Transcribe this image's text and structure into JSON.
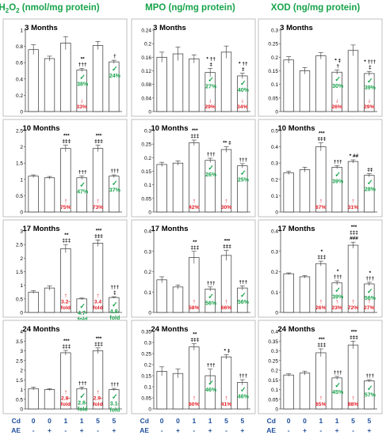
{
  "colors": {
    "green": "#17a34a",
    "red": "#e31b23",
    "blue": "#1f4e9c",
    "border": "#bfbfbf",
    "bar_stroke": "#333333"
  },
  "headers": [
    {
      "main": "H",
      "sub": "2",
      "mid": "O",
      "sub2": "2",
      "tail": " (nmol/mg protein)"
    },
    {
      "main": "MPO (ng/mg protein)"
    },
    {
      "main": "XOD (ng/mg protein)"
    }
  ],
  "axis_labels": {
    "cd_label": "Cd",
    "ae_label": "AE",
    "cd": [
      "0",
      "0",
      "1",
      "1",
      "5",
      "5"
    ],
    "ae": [
      "-",
      "+",
      "-",
      "+",
      "-",
      "+"
    ]
  },
  "chart_data": [
    {
      "type": "bar",
      "row_title": "3 Months",
      "column": "H2O2",
      "categories": [
        "1",
        "2",
        "3",
        "4",
        "5",
        "6"
      ],
      "values": [
        0.76,
        0.65,
        0.84,
        0.51,
        0.81,
        0.61
      ],
      "errors": [
        0.06,
        0.03,
        0.08,
        0.02,
        0.05,
        0.02
      ],
      "ylim": [
        0,
        1
      ],
      "yticks": [
        "0",
        "0.2",
        "0.4",
        "0.6",
        "0.8",
        "1"
      ],
      "sig": [
        [],
        [],
        [],
        [
          "**",
          "†††"
        ],
        [],
        [
          "†"
        ]
      ],
      "green": [
        [],
        [],
        [],
        [
          "✓",
          "38%"
        ],
        [],
        [
          "✓",
          "24%"
        ]
      ],
      "red": [
        [],
        [],
        [],
        [
          "↓",
          "33%"
        ],
        [],
        []
      ]
    },
    {
      "type": "bar",
      "row_title": "3 Months",
      "column": "MPO",
      "categories": [
        "1",
        "2",
        "3",
        "4",
        "5",
        "6"
      ],
      "values": [
        0.16,
        0.17,
        0.155,
        0.115,
        0.175,
        0.105
      ],
      "errors": [
        0.015,
        0.02,
        0.012,
        0.012,
        0.018,
        0.008
      ],
      "ylim": [
        0,
        0.24
      ],
      "yticks": [
        "0",
        "0.04",
        "0.08",
        "0.12",
        "0.16",
        "0.2",
        "0.24"
      ],
      "sig": [
        [],
        [],
        [],
        [
          "* ††",
          "‡"
        ],
        [],
        [
          "* ††",
          "‡"
        ]
      ],
      "green": [
        [],
        [],
        [],
        [
          "✓",
          "27%"
        ],
        [],
        [
          "✓",
          "40%"
        ]
      ],
      "red": [
        [],
        [],
        [],
        [
          "↓",
          "29%"
        ],
        [],
        [
          "↓",
          "34%"
        ]
      ]
    },
    {
      "type": "bar",
      "row_title": "3 Months",
      "column": "XOD",
      "categories": [
        "1",
        "2",
        "3",
        "4",
        "5",
        "6"
      ],
      "values": [
        0.19,
        0.15,
        0.205,
        0.145,
        0.225,
        0.14
      ],
      "errors": [
        0.012,
        0.012,
        0.012,
        0.008,
        0.02,
        0.008
      ],
      "ylim": [
        0,
        0.3
      ],
      "yticks": [
        "0",
        "0.05",
        "0.1",
        "0.15",
        "0.2",
        "0.25",
        "0.3"
      ],
      "sig": [
        [],
        [],
        [],
        [
          "* ‡",
          "†"
        ],
        [],
        [
          "* †††",
          "‡"
        ]
      ],
      "green": [
        [],
        [],
        [],
        [
          "✓",
          "30%"
        ],
        [],
        [
          "✓",
          "39%"
        ]
      ],
      "red": [
        [],
        [],
        [],
        [
          "↓",
          "26%"
        ],
        [],
        [
          "↓",
          "29%"
        ]
      ]
    },
    {
      "type": "bar",
      "row_title": "10 Months",
      "column": "H2O2",
      "categories": [
        "1",
        "2",
        "3",
        "4",
        "5",
        "6"
      ],
      "values": [
        1.1,
        1.05,
        1.95,
        1.05,
        1.95,
        1.1
      ],
      "errors": [
        0.04,
        0.04,
        0.1,
        0.05,
        0.1,
        0.04
      ],
      "ylim": [
        0,
        2.5
      ],
      "yticks": [
        "0",
        "0.5",
        "1",
        "1.5",
        "2",
        "2.5"
      ],
      "sig": [
        [],
        [],
        [
          "***",
          "‡‡‡"
        ],
        [
          "†††"
        ],
        [
          "***",
          "‡‡‡"
        ],
        [
          "†††"
        ]
      ],
      "green": [
        [],
        [],
        [],
        [
          "✓",
          "47%"
        ],
        [],
        [
          "✓",
          "37%"
        ]
      ],
      "red": [
        [],
        [],
        [
          "↑",
          "75%"
        ],
        [],
        [
          "↑",
          "73%"
        ],
        []
      ]
    },
    {
      "type": "bar",
      "row_title": "10 Months",
      "column": "MPO",
      "categories": [
        "1",
        "2",
        "3",
        "4",
        "5",
        "6"
      ],
      "values": [
        0.175,
        0.18,
        0.255,
        0.19,
        0.23,
        0.17
      ],
      "errors": [
        0.008,
        0.008,
        0.01,
        0.008,
        0.01,
        0.008
      ],
      "ylim": [
        0,
        0.3
      ],
      "yticks": [
        "0",
        "0.05",
        "0.1",
        "0.15",
        "0.2",
        "0.25",
        "0.3"
      ],
      "sig": [
        [],
        [],
        [
          "***",
          "‡‡‡"
        ],
        [
          "†††"
        ],
        [
          "** ‡"
        ],
        [
          "†††"
        ]
      ],
      "green": [
        [],
        [],
        [],
        [
          "✓",
          "26%"
        ],
        [],
        [
          "✓",
          "25%"
        ]
      ],
      "red": [
        [],
        [],
        [
          "↑",
          "42%"
        ],
        [],
        [
          "↑",
          "30%"
        ],
        []
      ]
    },
    {
      "type": "bar",
      "row_title": "10 Months",
      "column": "XOD",
      "categories": [
        "1",
        "2",
        "3",
        "4",
        "5",
        "6"
      ],
      "values": [
        0.24,
        0.26,
        0.4,
        0.275,
        0.31,
        0.225
      ],
      "errors": [
        0.01,
        0.015,
        0.025,
        0.01,
        0.01,
        0.01
      ],
      "ylim": [
        0,
        0.5
      ],
      "yticks": [
        "0",
        "0.1",
        "0.2",
        "0.3",
        "0.4",
        "0.5"
      ],
      "sig": [
        [],
        [],
        [
          "***",
          "‡‡‡"
        ],
        [
          "†††"
        ],
        [
          "* ##"
        ],
        [
          "‡‡"
        ]
      ],
      "green": [
        [],
        [],
        [],
        [
          "✓",
          "39%"
        ],
        [],
        [
          "✓",
          "28%"
        ]
      ],
      "red": [
        [],
        [],
        [
          "↑",
          "67%"
        ],
        [],
        [
          "↑",
          "31%"
        ],
        []
      ]
    },
    {
      "type": "bar",
      "row_title": "17 Months",
      "column": "H2O2",
      "categories": [
        "1",
        "2",
        "3",
        "4",
        "5",
        "6"
      ],
      "values": [
        0.75,
        0.9,
        2.35,
        0.5,
        2.55,
        0.55
      ],
      "errors": [
        0.05,
        0.08,
        0.15,
        0.03,
        0.12,
        0.03
      ],
      "ylim": [
        0,
        3
      ],
      "yticks": [
        "0",
        "0.5",
        "1",
        "1.5",
        "2",
        "2.5",
        "3"
      ],
      "sig": [
        [],
        [],
        [
          "**",
          "‡‡‡"
        ],
        [],
        [
          "***",
          "‡‡‡"
        ],
        [
          "†††",
          "‡"
        ]
      ],
      "green": [
        [],
        [],
        [],
        [
          "✓",
          "4.7-",
          "fold"
        ],
        [],
        [
          "✓",
          "4.8-",
          "fold"
        ]
      ],
      "red": [
        [],
        [],
        [
          "↑",
          "3.2-",
          "fold"
        ],
        [],
        [
          "↑",
          "3.4",
          "fold"
        ],
        []
      ]
    },
    {
      "type": "bar",
      "row_title": "17 Months",
      "column": "MPO",
      "categories": [
        "1",
        "2",
        "3",
        "4",
        "5",
        "6"
      ],
      "values": [
        0.16,
        0.125,
        0.27,
        0.115,
        0.28,
        0.12
      ],
      "errors": [
        0.015,
        0.01,
        0.03,
        0.01,
        0.025,
        0.01
      ],
      "ylim": [
        0,
        0.4
      ],
      "yticks": [
        "0",
        "0.1",
        "0.2",
        "0.3",
        "0.4"
      ],
      "sig": [
        [],
        [],
        [
          "**",
          "‡‡‡"
        ],
        [
          "†††"
        ],
        [
          "***",
          "‡‡‡"
        ],
        [
          "†††"
        ]
      ],
      "green": [
        [],
        [],
        [],
        [
          "✓",
          "56%"
        ],
        [],
        [
          "✓",
          "56%"
        ]
      ],
      "red": [
        [],
        [],
        [
          "↑",
          "58%"
        ],
        [],
        [
          "↑",
          "66%"
        ],
        []
      ]
    },
    {
      "type": "bar",
      "row_title": "17 Months",
      "column": "XOD",
      "categories": [
        "1",
        "2",
        "3",
        "4",
        "5",
        "6"
      ],
      "values": [
        0.19,
        0.175,
        0.24,
        0.145,
        0.33,
        0.14
      ],
      "errors": [
        0.004,
        0.006,
        0.012,
        0.01,
        0.015,
        0.008
      ],
      "ylim": [
        0,
        0.4
      ],
      "yticks": [
        "0",
        "0.1",
        "0.2",
        "0.3",
        "0.4"
      ],
      "sig": [
        [],
        [],
        [
          "*",
          "‡‡‡"
        ],
        [
          "*",
          "†††"
        ],
        [
          "***",
          "‡‡‡",
          "###"
        ],
        [
          "*",
          "†††"
        ]
      ],
      "green": [
        [],
        [],
        [],
        [
          "✓",
          "39%"
        ],
        [],
        [
          "✓",
          "56%"
        ]
      ],
      "red": [
        [],
        [],
        [
          "↑",
          "26%"
        ],
        [
          "↑",
          "23%"
        ],
        [
          "↑",
          "72%"
        ],
        [
          "↑",
          "27%"
        ]
      ]
    },
    {
      "type": "bar",
      "row_title": "24 Months",
      "column": "H2O2",
      "categories": [
        "1",
        "2",
        "3",
        "4",
        "5",
        "6"
      ],
      "values": [
        1.05,
        1.0,
        2.9,
        1.05,
        3.0,
        1.0
      ],
      "errors": [
        0.08,
        0.05,
        0.12,
        0.08,
        0.15,
        0.06
      ],
      "ylim": [
        0,
        4
      ],
      "yticks": [
        "0",
        "0.5",
        "1",
        "1.5",
        "2",
        "2.5",
        "3",
        "3.5",
        "4"
      ],
      "sig": [
        [],
        [],
        [
          "***",
          "‡‡‡"
        ],
        [
          "†††"
        ],
        [
          "***",
          "‡‡‡"
        ],
        [
          "†††"
        ]
      ],
      "green": [
        [],
        [],
        [],
        [
          "✓",
          "2.8-",
          "fold"
        ],
        [],
        [
          "✓",
          "3.1-",
          "fold"
        ]
      ],
      "red": [
        [],
        [],
        [
          "↑",
          "2.8-",
          "fold"
        ],
        [],
        [
          "↑",
          "2.9-",
          "fold"
        ],
        []
      ]
    },
    {
      "type": "bar",
      "row_title": "24 Months",
      "column": "MPO",
      "categories": [
        "1",
        "2",
        "3",
        "4",
        "5",
        "6"
      ],
      "values": [
        0.17,
        0.16,
        0.28,
        0.15,
        0.235,
        0.12
      ],
      "errors": [
        0.02,
        0.02,
        0.015,
        0.03,
        0.01,
        0.012
      ],
      "ylim": [
        0,
        0.35
      ],
      "yticks": [
        "0",
        "0.05",
        "0.1",
        "0.15",
        "0.2",
        "0.25",
        "0.3",
        "0.35"
      ],
      "sig": [
        [],
        [],
        [
          "**",
          "‡‡‡"
        ],
        [
          "†††"
        ],
        [
          "* ‡"
        ],
        [
          "†††"
        ]
      ],
      "green": [
        [],
        [],
        [],
        [
          "✓",
          "46%"
        ],
        [],
        [
          "✓",
          "46%"
        ]
      ],
      "red": [
        [],
        [],
        [
          "↑",
          "60%"
        ],
        [],
        [
          "↑",
          "41%"
        ],
        []
      ]
    },
    {
      "type": "bar",
      "row_title": "24 Months",
      "column": "XOD",
      "categories": [
        "1",
        "2",
        "3",
        "4",
        "5",
        "6"
      ],
      "values": [
        0.175,
        0.185,
        0.29,
        0.16,
        0.33,
        0.145
      ],
      "errors": [
        0.006,
        0.01,
        0.02,
        0.008,
        0.02,
        0.006
      ],
      "ylim": [
        0,
        0.4
      ],
      "yticks": [
        "0",
        "0.05",
        "0.1",
        "0.15",
        "0.2",
        "0.25",
        "0.3",
        "0.35",
        "0.4"
      ],
      "sig": [
        [],
        [],
        [
          "***",
          "‡‡‡"
        ],
        [
          "†††"
        ],
        [
          "***",
          "‡‡‡"
        ],
        [
          "†††"
        ]
      ],
      "green": [
        [],
        [],
        [],
        [
          "✓",
          "45%"
        ],
        [],
        [
          "✓",
          "57%"
        ]
      ],
      "red": [
        [],
        [],
        [
          "↑",
          "65%"
        ],
        [],
        [
          "↑",
          "88%"
        ],
        []
      ]
    }
  ]
}
